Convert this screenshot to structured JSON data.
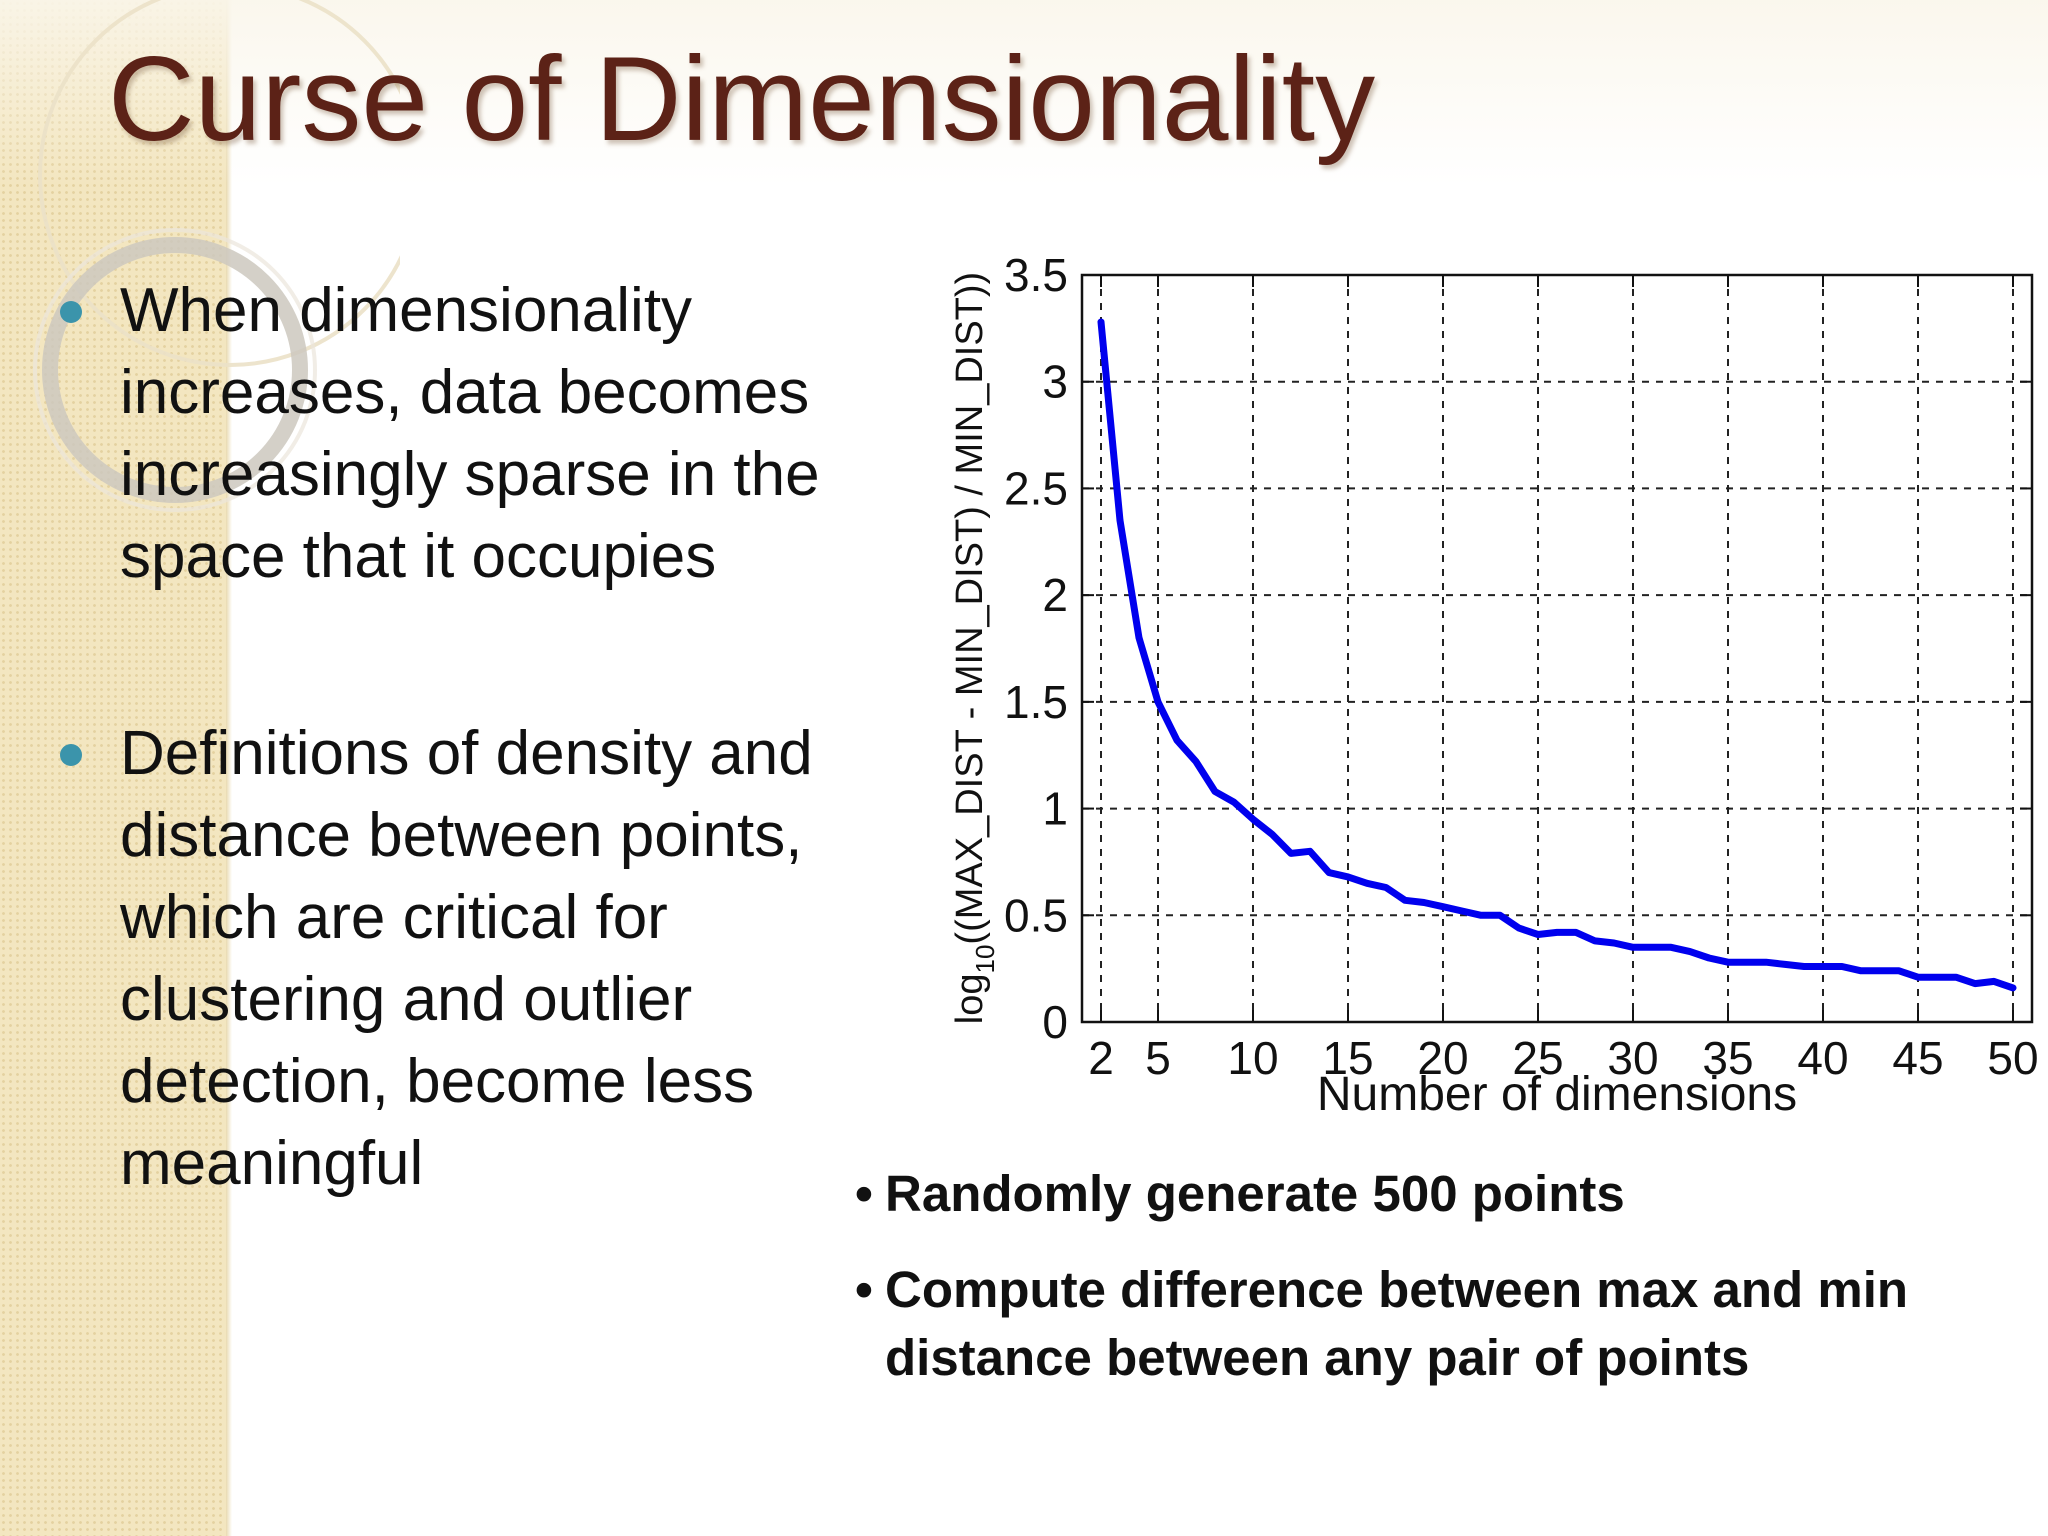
{
  "slide": {
    "title": "Curse of Dimensionality",
    "bullets": [
      {
        "text": "When dimensionality increases, data becomes increasingly sparse in the space that it occupies"
      },
      {
        "text": "Definitions of density and distance between points, which are critical for clustering and outlier detection, become less meaningful"
      }
    ],
    "notes": [
      {
        "marker": "•",
        "text": "Randomly generate 500 points"
      },
      {
        "marker": "•",
        "text": "Compute difference between max and min distance between any pair of points"
      }
    ],
    "colors": {
      "title": "#5c2217",
      "bullet_dot": "#3b94ab",
      "band": "#f3e6c0"
    }
  },
  "chart_data": {
    "type": "line",
    "title": "",
    "xlabel": "Number of dimensions",
    "ylabel": "log10((MAX_DIST - MIN_DIST) / MIN_DIST))",
    "xlim": [
      1,
      51
    ],
    "ylim": [
      0,
      3.5
    ],
    "xticks": [
      2,
      5,
      10,
      15,
      20,
      25,
      30,
      35,
      40,
      45,
      50
    ],
    "yticks": [
      0,
      0.5,
      1,
      1.5,
      2,
      2.5,
      3,
      3.5
    ],
    "grid": true,
    "line_color": "#0000ee",
    "series": [
      {
        "x": [
          2,
          3,
          4,
          5,
          6,
          7,
          8,
          9,
          10,
          11,
          12,
          13,
          14,
          15,
          16,
          17,
          18,
          19,
          20,
          21,
          22,
          23,
          24,
          25,
          26,
          27,
          28,
          29,
          30,
          31,
          32,
          33,
          34,
          35,
          36,
          37,
          38,
          39,
          40,
          41,
          42,
          43,
          44,
          45,
          46,
          47,
          48,
          49,
          50
        ],
        "y": [
          3.28,
          2.35,
          1.8,
          1.5,
          1.32,
          1.22,
          1.08,
          1.03,
          0.95,
          0.88,
          0.79,
          0.8,
          0.7,
          0.68,
          0.65,
          0.63,
          0.57,
          0.56,
          0.54,
          0.52,
          0.5,
          0.5,
          0.44,
          0.41,
          0.42,
          0.42,
          0.38,
          0.37,
          0.35,
          0.35,
          0.35,
          0.33,
          0.3,
          0.28,
          0.28,
          0.28,
          0.27,
          0.26,
          0.26,
          0.26,
          0.24,
          0.24,
          0.24,
          0.21,
          0.21,
          0.21,
          0.18,
          0.19,
          0.16
        ]
      }
    ]
  }
}
